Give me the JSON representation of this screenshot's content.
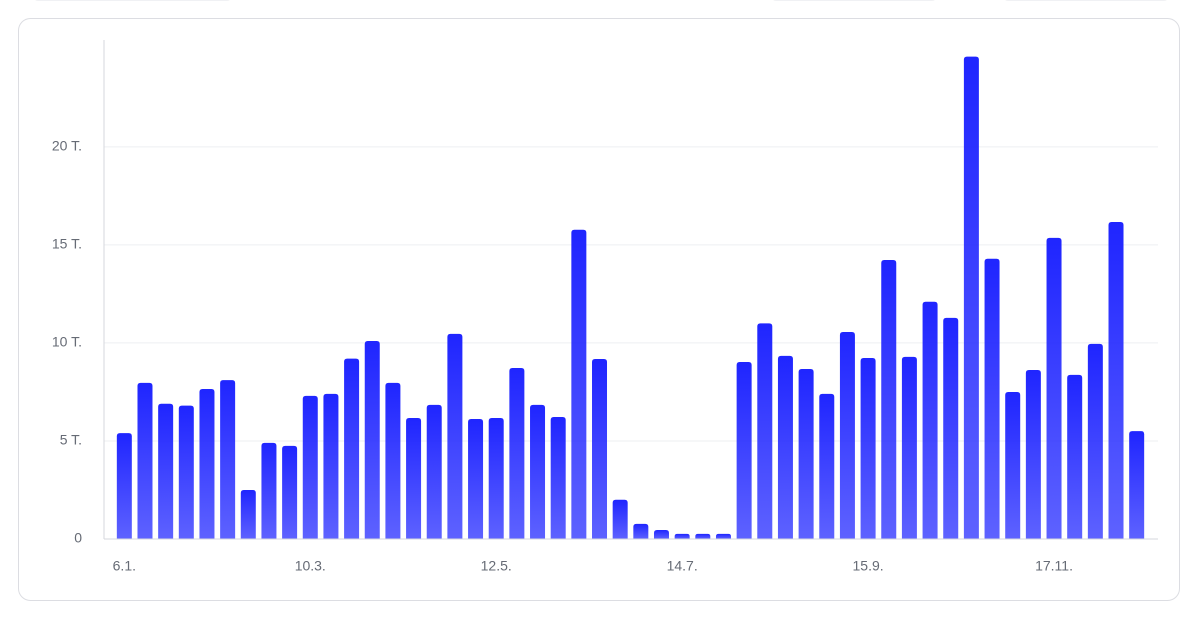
{
  "chart_data": {
    "type": "bar",
    "categories": [
      "6.1.",
      null,
      null,
      null,
      null,
      null,
      null,
      null,
      null,
      "10.3.",
      null,
      null,
      null,
      null,
      null,
      null,
      null,
      null,
      "12.5.",
      null,
      null,
      null,
      null,
      null,
      null,
      null,
      null,
      "14.7.",
      null,
      null,
      null,
      null,
      null,
      null,
      null,
      null,
      "15.9.",
      null,
      null,
      null,
      null,
      null,
      null,
      null,
      null,
      "17.11.",
      null,
      null,
      null,
      null
    ],
    "values": [
      5.4,
      7.96,
      6.9,
      6.8,
      7.65,
      8.1,
      2.5,
      4.9,
      4.75,
      7.3,
      7.4,
      9.2,
      10.1,
      7.96,
      6.17,
      6.84,
      10.46,
      6.12,
      6.17,
      8.72,
      6.84,
      6.22,
      15.77,
      9.18,
      2.0,
      0.77,
      0.46,
      0.26,
      0.26,
      0.26,
      9.03,
      11.0,
      9.34,
      8.67,
      7.4,
      10.56,
      9.23,
      14.23,
      9.29,
      12.1,
      11.28,
      24.6,
      14.29,
      7.5,
      8.62,
      15.36,
      8.37,
      9.95,
      16.17,
      5.5
    ],
    "color": "#1f25ff",
    "ylim": [
      0,
      25.5
    ],
    "yticks": [
      0,
      {
        "value": 5,
        "label": "5 T."
      },
      {
        "value": 10,
        "label": "10 T."
      },
      {
        "value": 15,
        "label": "15 T."
      },
      {
        "value": 20,
        "label": "20 T."
      }
    ],
    "grid": true
  }
}
